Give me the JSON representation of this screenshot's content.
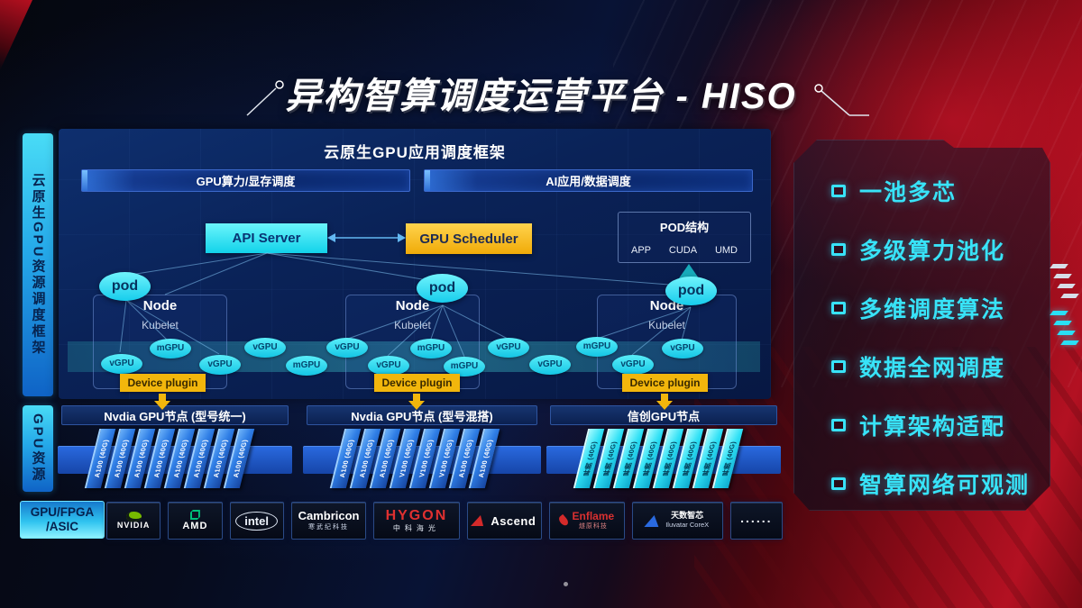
{
  "title": "异构智算调度运营平台 - HISO",
  "sidebar": {
    "framework": "云原生GPU资源调度框架",
    "gpu": "GPU资源",
    "hardware": "GPU/FPGA /ASIC"
  },
  "framework": {
    "header": "云原生GPU应用调度框架",
    "button_left": "GPU算力/显存调度",
    "button_right": "AI应用/数据调度",
    "api_server": "API Server",
    "gpu_scheduler": "GPU Scheduler",
    "pod_struct": {
      "title": "POD结构",
      "items": [
        "APP",
        "CUDA",
        "UMD"
      ]
    },
    "pod_label": "pod",
    "node_label": "Node",
    "kubelet_label": "Kubelet",
    "device_plugin_label": "Device plugin",
    "gpu_ellipses": {
      "group1": [
        "vGPU",
        "mGPU",
        "vGPU",
        "vGPU",
        "mGPU"
      ],
      "group2": [
        "vGPU",
        "vGPU",
        "mGPU",
        "mGPU",
        "vGPU",
        "vGPU"
      ],
      "group3": [
        "mGPU",
        "vGPU",
        "vGPU"
      ]
    }
  },
  "gpu_sections": [
    {
      "header": "Nvdia GPU节点 (型号统一)",
      "cards": [
        "A100 (40G)",
        "A100 (40G)",
        "A100 (40G)",
        "A100 (40G)",
        "A100 (40G)",
        "A100 (40G)",
        "A100 (40G)",
        "A100 (40G)"
      ]
    },
    {
      "header": "Nvdia GPU节点 (型号混搭)",
      "cards": [
        "A100 (40G)",
        "A100 (40G)",
        "A100 (40G)",
        "V100 (40G)",
        "V100 (40G)",
        "V100 (40G)",
        "A100 (40G)",
        "A100 (40G)"
      ]
    },
    {
      "header": "信创GPU节点",
      "cards": [
        "昇腾 (40G)",
        "昇腾 (40G)",
        "昇腾 (40G)",
        "昇腾 (40G)",
        "昇腾 (40G)",
        "昇腾 (40G)",
        "昇腾 (40G)",
        "昇腾 (40G)"
      ]
    }
  ],
  "vendors": [
    {
      "name": "NVIDIA"
    },
    {
      "name": "AMD"
    },
    {
      "name": "intel"
    },
    {
      "name": "Cambricon",
      "sub": "寒武纪科技"
    },
    {
      "name": "HYGON",
      "sub": "中科海光"
    },
    {
      "name": "Ascend"
    },
    {
      "name": "Enflame",
      "sub": "燧原科技"
    },
    {
      "name": "天数智芯",
      "sub": "Iluvatar CoreX"
    },
    {
      "name": "......"
    }
  ],
  "features": [
    "一池多芯",
    "多级算力池化",
    "多维调度算法",
    "数据全网调度",
    "计算架构适配",
    "智算网络可观测"
  ],
  "colors": {
    "accent_cyan": "#2BDFF5",
    "accent_yellow": "#F2B60C",
    "card_blue": "#2E7DE5",
    "nvidia_green": "#76B900",
    "hygon_red": "#E03030",
    "bg_red": "#B31122",
    "bg_blue": "#0A2257"
  }
}
